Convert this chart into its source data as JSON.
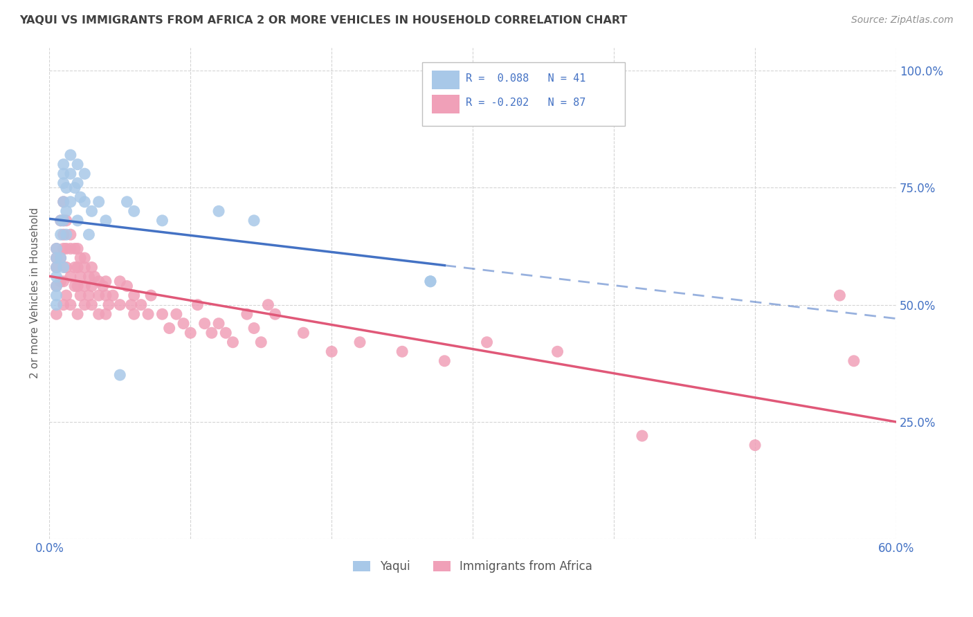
{
  "title": "YAQUI VS IMMIGRANTS FROM AFRICA 2 OR MORE VEHICLES IN HOUSEHOLD CORRELATION CHART",
  "source": "Source: ZipAtlas.com",
  "ylabel": "2 or more Vehicles in Household",
  "color_yaqui": "#a8c8e8",
  "color_immigrants": "#f0a0b8",
  "color_line_yaqui": "#4472c4",
  "color_line_immigrants": "#e05878",
  "xlim": [
    0.0,
    0.6
  ],
  "ylim": [
    0.0,
    1.05
  ],
  "yaqui_x": [
    0.005,
    0.005,
    0.005,
    0.005,
    0.005,
    0.005,
    0.005,
    0.008,
    0.008,
    0.008,
    0.01,
    0.01,
    0.01,
    0.01,
    0.01,
    0.01,
    0.012,
    0.012,
    0.012,
    0.015,
    0.015,
    0.015,
    0.018,
    0.02,
    0.02,
    0.02,
    0.022,
    0.025,
    0.025,
    0.028,
    0.03,
    0.035,
    0.04,
    0.05,
    0.055,
    0.06,
    0.08,
    0.12,
    0.145,
    0.27,
    0.27
  ],
  "yaqui_y": [
    0.62,
    0.6,
    0.58,
    0.56,
    0.54,
    0.52,
    0.5,
    0.68,
    0.65,
    0.6,
    0.8,
    0.78,
    0.76,
    0.72,
    0.68,
    0.58,
    0.75,
    0.7,
    0.65,
    0.82,
    0.78,
    0.72,
    0.75,
    0.8,
    0.76,
    0.68,
    0.73,
    0.78,
    0.72,
    0.65,
    0.7,
    0.72,
    0.68,
    0.35,
    0.72,
    0.7,
    0.68,
    0.7,
    0.68,
    0.55,
    0.55
  ],
  "immigrants_x": [
    0.005,
    0.005,
    0.005,
    0.005,
    0.005,
    0.008,
    0.008,
    0.008,
    0.01,
    0.01,
    0.01,
    0.01,
    0.01,
    0.01,
    0.012,
    0.012,
    0.012,
    0.012,
    0.015,
    0.015,
    0.015,
    0.015,
    0.018,
    0.018,
    0.018,
    0.02,
    0.02,
    0.02,
    0.02,
    0.022,
    0.022,
    0.022,
    0.025,
    0.025,
    0.025,
    0.025,
    0.028,
    0.028,
    0.03,
    0.03,
    0.03,
    0.032,
    0.035,
    0.035,
    0.035,
    0.038,
    0.04,
    0.04,
    0.04,
    0.042,
    0.045,
    0.05,
    0.05,
    0.055,
    0.058,
    0.06,
    0.06,
    0.065,
    0.07,
    0.072,
    0.08,
    0.085,
    0.09,
    0.095,
    0.1,
    0.105,
    0.11,
    0.115,
    0.12,
    0.125,
    0.13,
    0.14,
    0.145,
    0.15,
    0.155,
    0.16,
    0.18,
    0.2,
    0.22,
    0.25,
    0.28,
    0.31,
    0.36,
    0.42,
    0.5,
    0.56,
    0.57
  ],
  "immigrants_y": [
    0.62,
    0.6,
    0.58,
    0.54,
    0.48,
    0.68,
    0.6,
    0.55,
    0.72,
    0.68,
    0.65,
    0.62,
    0.55,
    0.5,
    0.68,
    0.62,
    0.58,
    0.52,
    0.65,
    0.62,
    0.56,
    0.5,
    0.62,
    0.58,
    0.54,
    0.62,
    0.58,
    0.54,
    0.48,
    0.6,
    0.56,
    0.52,
    0.6,
    0.58,
    0.54,
    0.5,
    0.56,
    0.52,
    0.58,
    0.54,
    0.5,
    0.56,
    0.55,
    0.52,
    0.48,
    0.54,
    0.55,
    0.52,
    0.48,
    0.5,
    0.52,
    0.55,
    0.5,
    0.54,
    0.5,
    0.52,
    0.48,
    0.5,
    0.48,
    0.52,
    0.48,
    0.45,
    0.48,
    0.46,
    0.44,
    0.5,
    0.46,
    0.44,
    0.46,
    0.44,
    0.42,
    0.48,
    0.45,
    0.42,
    0.5,
    0.48,
    0.44,
    0.4,
    0.42,
    0.4,
    0.38,
    0.42,
    0.4,
    0.22,
    0.2,
    0.52,
    0.38
  ]
}
